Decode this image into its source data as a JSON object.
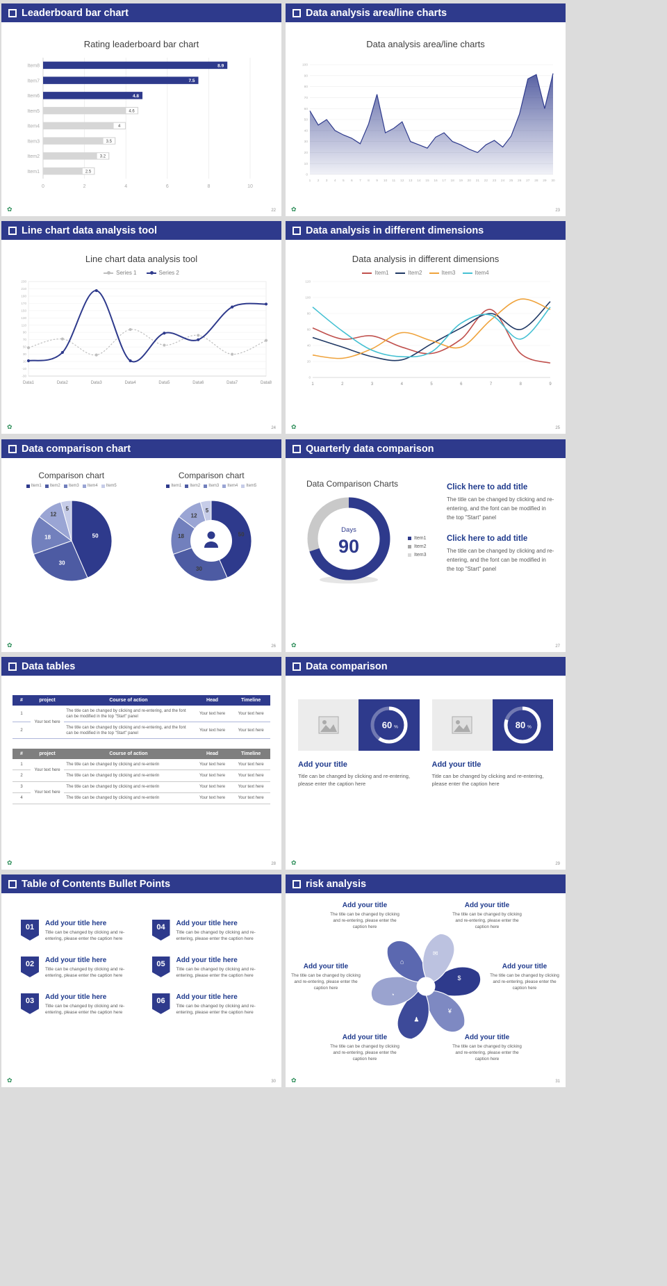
{
  "ui": {
    "background": "#dcdcdc",
    "slide_bg": "#ffffff",
    "header_bg": "#2e3a8c",
    "accent_navy": "#2e3a8c",
    "logo_glyph": "✿",
    "logo_color": "#2f8f5b"
  },
  "slides": {
    "s1": {
      "header": "Leaderboard bar chart",
      "page": "22",
      "chart_data": {
        "type": "hbar",
        "title": "Rating leaderboard bar chart",
        "categories": [
          "Item1",
          "Item2",
          "Item3",
          "Item4",
          "Item5",
          "Item6",
          "Item7",
          "Item8"
        ],
        "values": [
          2.5,
          3.2,
          3.5,
          4,
          4.6,
          4.8,
          7.5,
          8.9
        ],
        "bar_colors": [
          "gray",
          "gray",
          "gray",
          "gray",
          "gray",
          "navy",
          "navy",
          "navy"
        ],
        "palette": {
          "navy": "#2e3a8c",
          "gray": "#d6d6d6"
        },
        "xlim": [
          0,
          10
        ],
        "xticks": [
          0,
          2,
          4,
          6,
          8,
          10
        ]
      }
    },
    "s2": {
      "header": "Data analysis area/line charts",
      "page": "23",
      "chart_data": {
        "type": "area",
        "title": "Data analysis area/line charts",
        "x": [
          "1",
          "2",
          "3",
          "4",
          "5",
          "6",
          "7",
          "8",
          "9",
          "10",
          "11",
          "12",
          "13",
          "14",
          "15",
          "16",
          "17",
          "18",
          "19",
          "20",
          "21",
          "22",
          "23",
          "24",
          "25",
          "26",
          "27",
          "28",
          "29",
          "30"
        ],
        "values": [
          58,
          45,
          50,
          40,
          36,
          33,
          28,
          46,
          73,
          38,
          42,
          48,
          30,
          27,
          24,
          34,
          38,
          30,
          27,
          23,
          20,
          27,
          31,
          25,
          35,
          55,
          87,
          91,
          60,
          92
        ],
        "ylim": [
          0,
          100
        ],
        "ystep": 10,
        "line_color": "#2e3a8c"
      }
    },
    "s3": {
      "header": "Line chart data analysis tool",
      "page": "24",
      "chart_data": {
        "type": "line",
        "title": "Line chart data analysis tool",
        "x_labels": [
          "Data1",
          "Data2",
          "Data3",
          "Data4",
          "Data5",
          "Data6",
          "Data7",
          "Data8"
        ],
        "ylim": [
          -30,
          230
        ],
        "ystep": 20,
        "smooth": true,
        "box": true,
        "series": [
          {
            "name": "Series 1",
            "color": "#bfbfbf",
            "dash": true,
            "width": 1.2,
            "markers": true,
            "values": [
              48,
              72,
              28,
              98,
              55,
              82,
              30,
              68
            ]
          },
          {
            "name": "Series 2",
            "color": "#2e3a8c",
            "dash": false,
            "width": 2,
            "markers": true,
            "values": [
              12,
              35,
              205,
              12,
              88,
              70,
              160,
              168
            ]
          }
        ]
      }
    },
    "s4": {
      "header": "Data analysis in different dimensions",
      "page": "25",
      "chart_data": {
        "type": "line",
        "title": "Data analysis in different dimensions",
        "x_labels": [
          "1",
          "2",
          "3",
          "4",
          "5",
          "6",
          "7",
          "8",
          "9"
        ],
        "ylim": [
          0,
          120
        ],
        "ystep": 20,
        "smooth": true,
        "box": false,
        "series": [
          {
            "name": "Item1",
            "color": "#c0504d",
            "width": 1.6,
            "values": [
              62,
              48,
              52,
              38,
              30,
              48,
              85,
              30,
              18
            ]
          },
          {
            "name": "Item2",
            "color": "#1f3864",
            "width": 1.6,
            "values": [
              50,
              38,
              26,
              22,
              42,
              62,
              80,
              60,
              95
            ]
          },
          {
            "name": "Item3",
            "color": "#efa33c",
            "width": 1.6,
            "values": [
              28,
              24,
              36,
              56,
              46,
              38,
              72,
              98,
              85
            ]
          },
          {
            "name": "Item4",
            "color": "#45c1d3",
            "width": 1.6,
            "values": [
              88,
              58,
              34,
              26,
              32,
              68,
              78,
              48,
              88
            ]
          }
        ]
      }
    },
    "s5": {
      "header": "Data comparison chart",
      "page": "26",
      "left": {
        "chart_data": {
          "type": "pie",
          "title": "Comparison chart",
          "labels": [
            "Item1",
            "Item2",
            "Item3",
            "Item4",
            "Item5"
          ],
          "values": [
            50,
            30,
            18,
            12,
            5
          ],
          "colors": [
            "#2e3a8c",
            "#4d5ba3",
            "#7280bd",
            "#9aa5d4",
            "#c6cce8"
          ],
          "label_colors": [
            "#ffffff",
            "#ffffff",
            "#ffffff",
            "#3a3a3a",
            "#3a3a3a"
          ],
          "donut": false
        }
      },
      "right": {
        "chart_data": {
          "type": "pie",
          "title": "Comparison chart",
          "labels": [
            "Item1",
            "Item2",
            "Item3",
            "Item4",
            "Item5"
          ],
          "values": [
            50,
            30,
            18,
            12,
            5
          ],
          "colors": [
            "#2e3a8c",
            "#4d5ba3",
            "#7280bd",
            "#9aa5d4",
            "#c6cce8"
          ],
          "label_colors": [
            "#3a3a3a",
            "#3a3a3a",
            "#3a3a3a",
            "#3a3a3a",
            "#3a3a3a"
          ],
          "donut": true,
          "center_icon": "presenter-icon"
        }
      }
    },
    "s6": {
      "header": "Quarterly data comparison",
      "page": "27",
      "chart_title": "Data Comparison Charts",
      "gauge": {
        "type": "gauge",
        "center_label": "Days",
        "center_value": "90",
        "value_deg": 252,
        "color": "#2e3a8c",
        "track": "#c9c9c9"
      },
      "legend": [
        {
          "label": "Item1",
          "color": "#2e3a8c"
        },
        {
          "label": "Item2",
          "color": "#a6a6a6"
        },
        {
          "label": "Item3",
          "color": "#d9d9d9"
        }
      ],
      "blocks": [
        {
          "title": "Click here to add title",
          "body": "The title can be changed by clicking and re-entering, and the font can be modified in the top \"Start\" panel"
        },
        {
          "title": "Click here to add title",
          "body": "The title can be changed by clicking and re-entering, and the font can be modified in the top \"Start\" panel"
        }
      ]
    },
    "s7": {
      "header": "Data tables",
      "page": "28",
      "table1": {
        "headers": [
          "#",
          "project",
          "Course of action",
          "Head",
          "Timeline"
        ],
        "project": "Your text here",
        "rows": [
          {
            "num": "1",
            "action": "The title can be changed by clicking and re-entering, and the font can be modified in the top \"Start\" panel",
            "head": "Your text here",
            "timeline": "Your text here"
          },
          {
            "num": "2",
            "action": "The title can be changed by clicking and re-entering, and the font can be modified in the top \"Start\" panel",
            "head": "Your text here",
            "timeline": "Your text here"
          }
        ]
      },
      "table2": {
        "headers": [
          "#",
          "project",
          "Course of action",
          "Head",
          "Timeline"
        ],
        "project": "Your text here",
        "rows": [
          {
            "num": "1",
            "action": "The title can be changed by clicking and re-enterin",
            "head": "Your text here",
            "timeline": "Your text here"
          },
          {
            "num": "2",
            "action": "The title can be changed by clicking and re-enterin",
            "head": "Your text here",
            "timeline": "Your text here"
          },
          {
            "num": "3",
            "action": "The title can be changed by clicking and re-enterin",
            "head": "Your text here",
            "timeline": "Your text here"
          },
          {
            "num": "4",
            "action": "The title can be changed by clicking and re-enterin",
            "head": "Your text here",
            "timeline": "Your text here"
          }
        ]
      }
    },
    "s8": {
      "header": "Data comparison",
      "page": "29",
      "cards": [
        {
          "ring": {
            "type": "ring",
            "percent": 60
          },
          "title": "Add your title",
          "caption": "Title can be changed by clicking and re-entering, please enter the caption here"
        },
        {
          "ring": {
            "type": "ring",
            "percent": 80
          },
          "title": "Add your title",
          "caption": "Title can be changed by clicking and re-entering, please enter the caption here"
        }
      ]
    },
    "s9": {
      "header": "Table of Contents Bullet Points",
      "page": "30",
      "items": [
        {
          "num": "01",
          "title": "Add your title here",
          "caption": "Title can be changed by clicking and re-entering, please enter the caption here"
        },
        {
          "num": "02",
          "title": "Add your title here",
          "caption": "Title can be changed by clicking and re-entering, please enter the caption here"
        },
        {
          "num": "03",
          "title": "Add your title here",
          "caption": "Title can be changed by clicking and re-entering, please enter the caption here"
        },
        {
          "num": "04",
          "title": "Add your title here",
          "caption": "Title can be changed by clicking and re-entering, please enter the caption here"
        },
        {
          "num": "05",
          "title": "Add your title here",
          "caption": "Title can be changed by clicking and re-entering, please enter the caption here"
        },
        {
          "num": "06",
          "title": "Add your title here",
          "caption": "Title can be changed by clicking and re-entering, please enter the caption here"
        }
      ]
    },
    "s10": {
      "header": "risk analysis",
      "page": "31",
      "wheel": {
        "type": "pinwheel",
        "colors": [
          "#2e3a8c",
          "#7e89c2",
          "#3d4a99",
          "#9aa3cf",
          "#5b68b0",
          "#bcc2e0"
        ],
        "icons": [
          "$",
          "¥",
          "♟",
          "◔",
          "⌂",
          "✉"
        ],
        "icon_names": [
          "money-icon",
          "coins-icon",
          "person-icon",
          "pie-chart-icon",
          "building-icon",
          "mail-icon"
        ]
      },
      "blocks": [
        {
          "title": "Add your title",
          "caption": "The title can be changed by clicking and re-entering, please enter the caption here"
        },
        {
          "title": "Add your title",
          "caption": "The title can be changed by clicking and re-entering, please enter the caption here"
        },
        {
          "title": "Add your title",
          "caption": "The title can be changed by clicking and re-entering, please enter the caption here"
        },
        {
          "title": "Add your title",
          "caption": "The title can be changed by clicking and re-entering, please enter the caption here"
        },
        {
          "title": "Add your title",
          "caption": "The title can be changed by clicking and re-entering, please enter the caption here"
        },
        {
          "title": "Add your title",
          "caption": "The title can be changed by clicking and re-entering, please enter the caption here"
        }
      ]
    }
  }
}
